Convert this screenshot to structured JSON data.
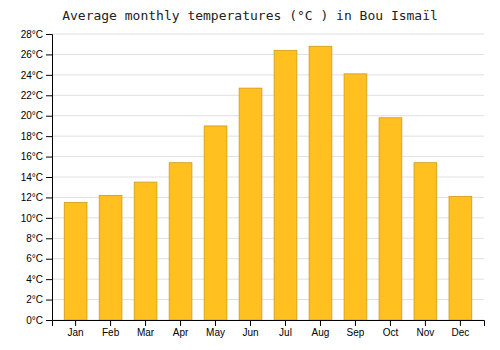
{
  "chart_data": {
    "type": "bar",
    "title": "Average monthly temperatures (°C ) in Bou Ismaïl",
    "categories": [
      "Jan",
      "Feb",
      "Mar",
      "Apr",
      "May",
      "Jun",
      "Jul",
      "Aug",
      "Sep",
      "Oct",
      "Nov",
      "Dec"
    ],
    "values": [
      11.5,
      12.2,
      13.5,
      15.4,
      19.0,
      22.7,
      26.4,
      26.8,
      24.1,
      19.8,
      15.4,
      12.1
    ],
    "color": "#FFC020",
    "ylim": [
      0,
      28
    ],
    "yticks": [
      {
        "value": 0,
        "label": "0°C"
      },
      {
        "value": 2,
        "label": "2°C"
      },
      {
        "value": 4,
        "label": "4°C"
      },
      {
        "value": 6,
        "label": "6°C"
      },
      {
        "value": 8,
        "label": "8°C"
      },
      {
        "value": 10,
        "label": "10°C"
      },
      {
        "value": 12,
        "label": "12°C"
      },
      {
        "value": 14,
        "label": "14°C"
      },
      {
        "value": 16,
        "label": "16°C"
      },
      {
        "value": 18,
        "label": "18°C"
      },
      {
        "value": 20,
        "label": "20°C"
      },
      {
        "value": 22,
        "label": "22°C"
      },
      {
        "value": 24,
        "label": "24°C"
      },
      {
        "value": 26,
        "label": "26°C"
      },
      {
        "value": 28,
        "label": "28°C"
      }
    ],
    "grid": true
  }
}
